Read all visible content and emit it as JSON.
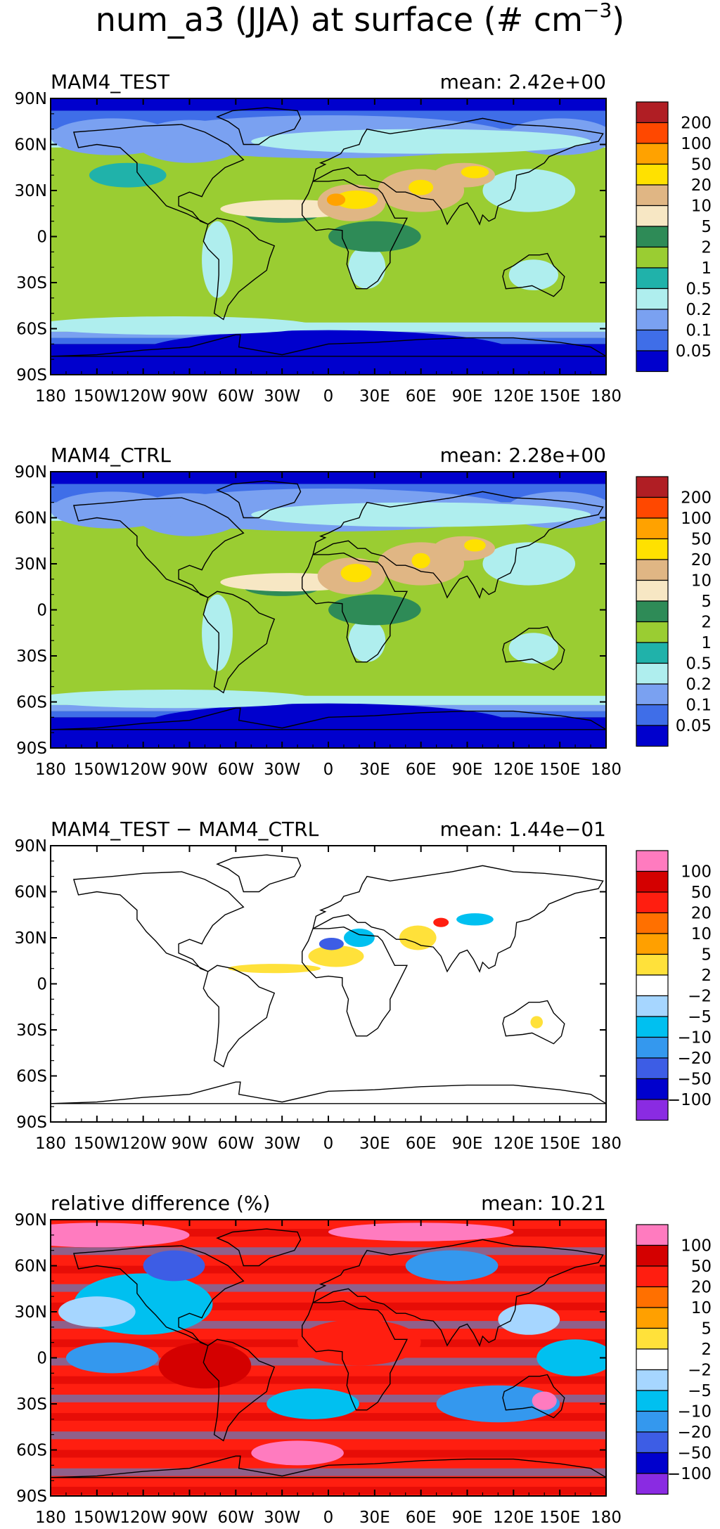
{
  "figure_title": {
    "main": "num_a3 (JJA) at surface (# cm",
    "superscript": "−3",
    "close": ")"
  },
  "chart_data": [
    {
      "type": "heatmap",
      "title": "MAM4_TEST",
      "stat": "mean: 2.42e+00",
      "xticks": [
        "180",
        "150W",
        "120W",
        "90W",
        "60W",
        "30W",
        "0",
        "30E",
        "60E",
        "90E",
        "120E",
        "150E",
        "180"
      ],
      "yticks": [
        "90N",
        "60N",
        "30N",
        "0",
        "30S",
        "60S",
        "90S"
      ],
      "xlim": [
        -180,
        180
      ],
      "ylim": [
        -90,
        90
      ],
      "colorbar": {
        "labels": [
          "200",
          "100",
          "50",
          "20",
          "10",
          "5",
          "2",
          "1",
          "0.5",
          "0.2",
          "0.1",
          "0.05"
        ],
        "colors": [
          "#b01e24",
          "#ff4800",
          "#ffa200",
          "#ffe100",
          "#e0b684",
          "#f7e7c4",
          "#2e8b57",
          "#9acd32",
          "#20b2aa",
          "#afeeee",
          "#7aa1f1",
          "#3f6ee8",
          "#0000cd"
        ]
      }
    },
    {
      "type": "heatmap",
      "title": "MAM4_CTRL",
      "stat": "mean: 2.28e+00",
      "xticks": [
        "180",
        "150W",
        "120W",
        "90W",
        "60W",
        "30W",
        "0",
        "30E",
        "60E",
        "90E",
        "120E",
        "150E",
        "180"
      ],
      "yticks": [
        "90N",
        "60N",
        "30N",
        "0",
        "30S",
        "60S",
        "90S"
      ],
      "xlim": [
        -180,
        180
      ],
      "ylim": [
        -90,
        90
      ],
      "colorbar": {
        "labels": [
          "200",
          "100",
          "50",
          "20",
          "10",
          "5",
          "2",
          "1",
          "0.5",
          "0.2",
          "0.1",
          "0.05"
        ],
        "colors": [
          "#b01e24",
          "#ff4800",
          "#ffa200",
          "#ffe100",
          "#e0b684",
          "#f7e7c4",
          "#2e8b57",
          "#9acd32",
          "#20b2aa",
          "#afeeee",
          "#7aa1f1",
          "#3f6ee8",
          "#0000cd"
        ]
      }
    },
    {
      "type": "heatmap",
      "title": "MAM4_TEST − MAM4_CTRL",
      "stat": "mean: 1.44e−01",
      "xticks": [
        "180",
        "150W",
        "120W",
        "90W",
        "60W",
        "30W",
        "0",
        "30E",
        "60E",
        "90E",
        "120E",
        "150E",
        "180"
      ],
      "yticks": [
        "90N",
        "60N",
        "30N",
        "0",
        "30S",
        "60S",
        "90S"
      ],
      "xlim": [
        -180,
        180
      ],
      "ylim": [
        -90,
        90
      ],
      "colorbar": {
        "labels": [
          "100",
          "50",
          "20",
          "10",
          "5",
          "2",
          "−2",
          "−5",
          "−10",
          "−20",
          "−50",
          "−100"
        ],
        "colors": [
          "#ff7bbf",
          "#d40000",
          "#ff1e10",
          "#ff7000",
          "#ffa000",
          "#ffe13a",
          "#ffffff",
          "#a6d6ff",
          "#00c0f0",
          "#3498ee",
          "#3d5de5",
          "#0000cd",
          "#8a2be2"
        ]
      }
    },
    {
      "type": "heatmap",
      "title": "relative difference (%)",
      "stat": "mean: 10.21",
      "xticks": [
        "180",
        "150W",
        "120W",
        "90W",
        "60W",
        "30W",
        "0",
        "30E",
        "60E",
        "90E",
        "120E",
        "150E",
        "180"
      ],
      "yticks": [
        "90N",
        "60N",
        "30N",
        "0",
        "30S",
        "60S",
        "90S"
      ],
      "xlim": [
        -180,
        180
      ],
      "ylim": [
        -90,
        90
      ],
      "colorbar": {
        "labels": [
          "100",
          "50",
          "20",
          "10",
          "5",
          "2",
          "−2",
          "−5",
          "−10",
          "−20",
          "−50",
          "−100"
        ],
        "colors": [
          "#ff7bbf",
          "#d40000",
          "#ff1e10",
          "#ff7000",
          "#ffa000",
          "#ffe13a",
          "#ffffff",
          "#a6d6ff",
          "#00c0f0",
          "#3498ee",
          "#3d5de5",
          "#0000cd",
          "#8a2be2"
        ]
      }
    }
  ]
}
